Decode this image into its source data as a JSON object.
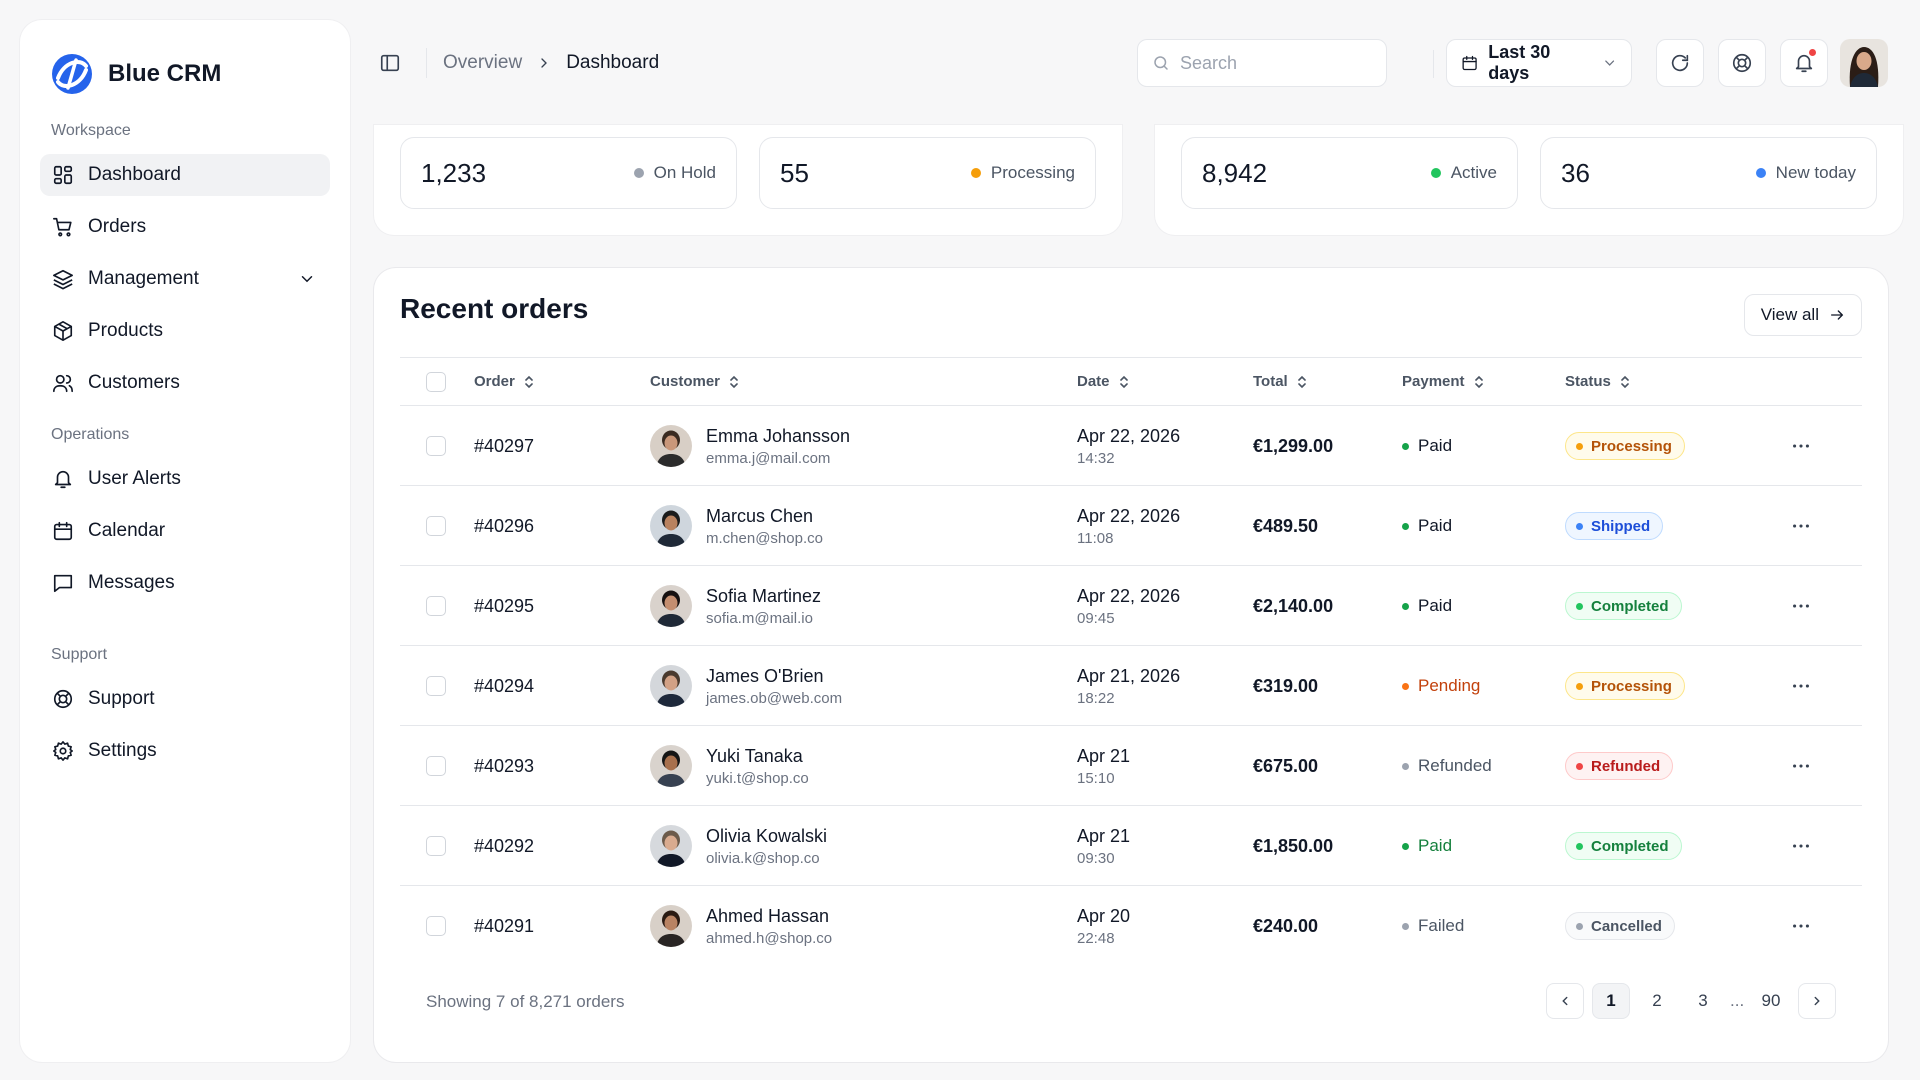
{
  "app": {
    "name": "Blue CRM"
  },
  "sidebar": {
    "sections": [
      {
        "label": "Workspace"
      },
      {
        "label": "Operations"
      },
      {
        "label": "Support"
      }
    ],
    "items": [
      {
        "label": "Dashboard",
        "icon": "dashboard-icon"
      },
      {
        "label": "Orders",
        "icon": "cart-icon"
      },
      {
        "label": "Management",
        "icon": "layers-icon"
      },
      {
        "label": "Products",
        "icon": "box-icon"
      },
      {
        "label": "Customers",
        "icon": "users-icon"
      },
      {
        "label": "User Alerts",
        "icon": "bell-icon"
      },
      {
        "label": "Calendar",
        "icon": "calendar-icon"
      },
      {
        "label": "Messages",
        "icon": "message-icon"
      },
      {
        "label": "Support",
        "icon": "lifebuoy-icon"
      },
      {
        "label": "Settings",
        "icon": "gear-icon"
      }
    ]
  },
  "topbar": {
    "breadcrumb": [
      "Overview",
      "Dashboard"
    ],
    "search_placeholder": "Search",
    "date_range": "Last 30 days"
  },
  "stats": [
    {
      "value": "1,233",
      "label": "On Hold",
      "color": "#9ca3af"
    },
    {
      "value": "55",
      "label": "Processing",
      "color": "#f59e0b"
    },
    {
      "value": "8,942",
      "label": "Active",
      "color": "#22c55e"
    },
    {
      "value": "36",
      "label": "New today",
      "color": "#3b82f6"
    }
  ],
  "orders": {
    "title": "Recent orders",
    "view_all": "View all",
    "columns": [
      "Order",
      "Customer",
      "Date",
      "Total",
      "Payment",
      "Status"
    ],
    "rows": [
      {
        "id": "#40297",
        "name": "Emma Johansson",
        "email": "emma.j@mail.com",
        "date": "Apr 22, 2026",
        "time": "14:32",
        "total": "€1,299.00",
        "payment": "Paid",
        "pay_color": "#16a34a",
        "pay_text_color": "#111827",
        "status": "Processing",
        "status_style": "processing"
      },
      {
        "id": "#40296",
        "name": "Marcus Chen",
        "email": "m.chen@shop.co",
        "date": "Apr 22, 2026",
        "time": "11:08",
        "total": "€489.50",
        "payment": "Paid",
        "pay_color": "#16a34a",
        "pay_text_color": "#111827",
        "status": "Shipped",
        "status_style": "shipped"
      },
      {
        "id": "#40295",
        "name": "Sofia Martinez",
        "email": "sofia.m@mail.io",
        "date": "Apr 22, 2026",
        "time": "09:45",
        "total": "€2,140.00",
        "payment": "Paid",
        "pay_color": "#16a34a",
        "pay_text_color": "#111827",
        "status": "Completed",
        "status_style": "completed"
      },
      {
        "id": "#40294",
        "name": "James O'Brien",
        "email": "james.ob@web.com",
        "date": "Apr 21, 2026",
        "time": "18:22",
        "total": "€319.00",
        "payment": "Pending",
        "pay_color": "#f97316",
        "pay_text_color": "#c2410c",
        "status": "Processing",
        "status_style": "processing"
      },
      {
        "id": "#40293",
        "name": "Yuki Tanaka",
        "email": "yuki.t@shop.co",
        "date": "Apr 21",
        "time": "15:10",
        "total": "€675.00",
        "payment": "Refunded",
        "pay_color": "#9ca3af",
        "pay_text_color": "#4b5563",
        "status": "Refunded",
        "status_style": "refunded"
      },
      {
        "id": "#40292",
        "name": "Olivia Kowalski",
        "email": "olivia.k@shop.co",
        "date": "Apr 21",
        "time": "09:30",
        "total": "€1,850.00",
        "payment": "Paid",
        "pay_color": "#16a34a",
        "pay_text_color": "#15803d",
        "status": "Completed",
        "status_style": "completed"
      },
      {
        "id": "#40291",
        "name": "Ahmed Hassan",
        "email": "ahmed.h@shop.co",
        "date": "Apr 20",
        "time": "22:48",
        "total": "€240.00",
        "payment": "Failed",
        "pay_color": "#9ca3af",
        "pay_text_color": "#4b5563",
        "status": "Cancelled",
        "status_style": "cancelled"
      }
    ],
    "footer": "Showing 7 of 8,271 orders",
    "pagination": {
      "pages": [
        "1",
        "2",
        "3"
      ],
      "ellipsis": "...",
      "last": "90",
      "current": "1"
    }
  },
  "badge_styles": {
    "processing": {
      "bg": "#fffbeb",
      "border": "#fde68a",
      "text": "#b45309",
      "dot": "#f59e0b"
    },
    "shipped": {
      "bg": "#eff6ff",
      "border": "#bfdbfe",
      "text": "#1d4ed8",
      "dot": "#3b82f6"
    },
    "completed": {
      "bg": "#f0fdf4",
      "border": "#bbf7d0",
      "text": "#15803d",
      "dot": "#22c55e"
    },
    "refunded": {
      "bg": "#fef2f2",
      "border": "#fecaca",
      "text": "#b91c1c",
      "dot": "#ef4444"
    },
    "cancelled": {
      "bg": "#f9fafb",
      "border": "#e5e7eb",
      "text": "#4b5563",
      "dot": "#9ca3af"
    }
  }
}
